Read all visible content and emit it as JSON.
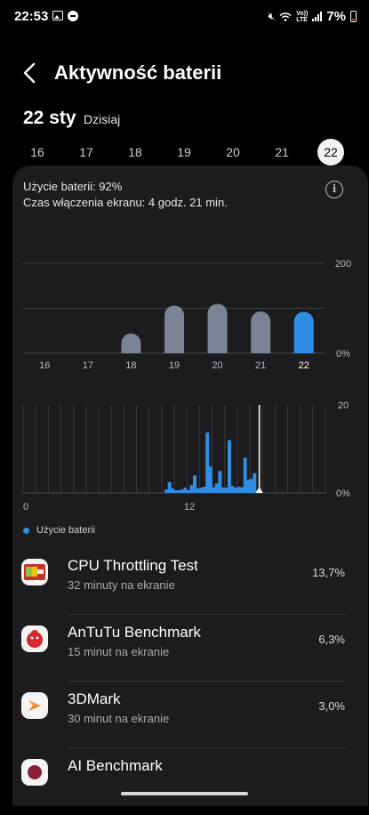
{
  "status_bar": {
    "time": "22:53",
    "battery_text": "7%",
    "volte_top": "Vo))",
    "volte_bottom": "LTE",
    "icons": [
      "gallery-icon",
      "dnd-icon",
      "mute-icon",
      "wifi-icon",
      "volte-icon",
      "signal-icon",
      "battery-icon"
    ]
  },
  "header": {
    "title": "Aktywność baterii",
    "back_icon": "chevron-left-icon"
  },
  "date": {
    "main": "22 sty",
    "sub": "Dzisiaj"
  },
  "days": [
    "16",
    "17",
    "18",
    "19",
    "20",
    "21",
    "22"
  ],
  "selected_day": "22",
  "summary": {
    "usage": "Użycie baterii: 92%",
    "screen_time": "Czas włączenia ekranu: 4 godz. 21 min."
  },
  "colors": {
    "accent": "#2f8de4",
    "bar_inactive": "#7a8494",
    "card_bg": "#1c1c1e"
  },
  "chart_data": [
    {
      "type": "bar",
      "categories": [
        "16",
        "17",
        "18",
        "19",
        "20",
        "21",
        "22"
      ],
      "values": [
        0,
        0,
        44,
        106,
        110,
        93,
        92
      ],
      "y_tick_labels": [
        "200",
        "0%"
      ],
      "ylim": [
        0,
        200
      ],
      "highlighted": "22"
    },
    {
      "type": "bar",
      "x_tick_labels": [
        "0",
        "12"
      ],
      "values": [
        0,
        0,
        0,
        0,
        0,
        0,
        0,
        0,
        0,
        0,
        0,
        0,
        0,
        0,
        0,
        0,
        0,
        0,
        0,
        0,
        0,
        0,
        0,
        0,
        0,
        0,
        0,
        0,
        0,
        0,
        0,
        0,
        0,
        0,
        0,
        0,
        0,
        0,
        0,
        0,
        0,
        0,
        0,
        0,
        0,
        0.8,
        2.5,
        1,
        0.6,
        0.5,
        0.8,
        1.2,
        0.6,
        1.8,
        4,
        1,
        1.2,
        1.4,
        13.7,
        6,
        1.3,
        2.2,
        5,
        1.2,
        1.2,
        12,
        1.6,
        1.2,
        1.4,
        1.3,
        8,
        3,
        3.2,
        4.5,
        0.5
      ],
      "y_tick_labels": [
        "20",
        "0%"
      ],
      "ylim": [
        0,
        20
      ],
      "legend": "Użycie baterii"
    }
  ],
  "apps": [
    {
      "name": "CPU Throttling Test",
      "screen_time": "32 minuty na ekranie",
      "percent": "13,7%",
      "icon": "cpu-throttling-test-icon"
    },
    {
      "name": "AnTuTu Benchmark",
      "screen_time": "15 minut na ekranie",
      "percent": "6,3%",
      "icon": "antutu-benchmark-icon"
    },
    {
      "name": "3DMark",
      "screen_time": "30 minut na ekranie",
      "percent": "3,0%",
      "icon": "3dmark-icon"
    },
    {
      "name": "AI Benchmark",
      "screen_time": "",
      "percent": "",
      "icon": "ai-benchmark-icon"
    }
  ]
}
